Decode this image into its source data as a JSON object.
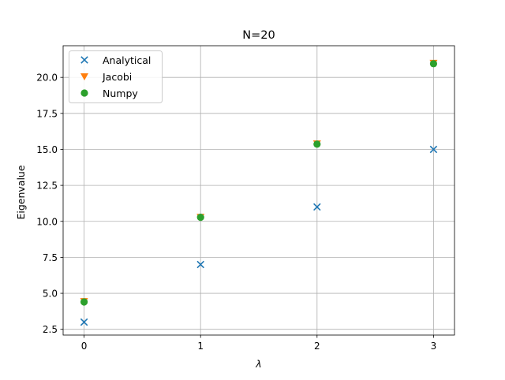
{
  "chart_data": {
    "type": "scatter",
    "title": "N=20",
    "xlabel": "λ",
    "ylabel": "Eigenvalue",
    "xlim": [
      -0.18,
      3.18
    ],
    "ylim": [
      2.1,
      22.2
    ],
    "xticks": [
      0,
      1,
      2,
      3
    ],
    "xtick_labels": [
      "0",
      "1",
      "2",
      "3"
    ],
    "yticks": [
      2.5,
      5.0,
      7.5,
      10.0,
      12.5,
      15.0,
      17.5,
      20.0
    ],
    "ytick_labels": [
      "2.5",
      "5.0",
      "7.5",
      "10.0",
      "12.5",
      "15.0",
      "17.5",
      "20.0"
    ],
    "grid": true,
    "legend_position": "top-left",
    "series": [
      {
        "name": "Analytical",
        "marker": "x",
        "color": "#1f77b4",
        "x": [
          0,
          1,
          2,
          3
        ],
        "y": [
          3.0,
          7.0,
          11.0,
          15.0
        ]
      },
      {
        "name": "Jacobi",
        "marker": "triangle-down",
        "color": "#ff7f0e",
        "x": [
          0,
          1,
          2,
          3
        ],
        "y": [
          4.45,
          10.3,
          15.4,
          21.0
        ]
      },
      {
        "name": "Numpy",
        "marker": "circle",
        "color": "#2ca02c",
        "x": [
          0,
          1,
          2,
          3
        ],
        "y": [
          4.4,
          10.28,
          15.36,
          20.95
        ]
      }
    ]
  }
}
